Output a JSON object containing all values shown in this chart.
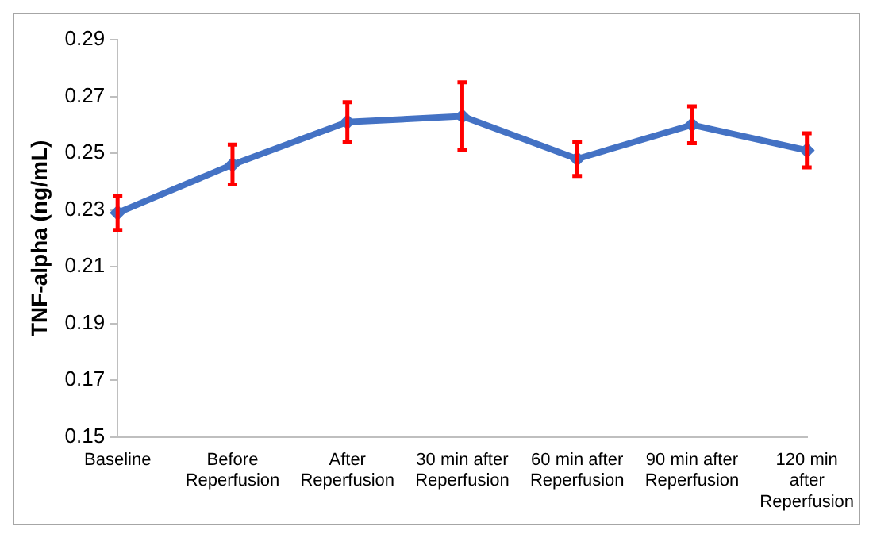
{
  "chart_data": {
    "type": "line",
    "ylabel": "TNF-alpha (ng/mL)",
    "categories": [
      "Baseline",
      "Before Reperfusion",
      "After Reperfusion",
      "30 min after Reperfusion",
      "60 min after Reperfusion",
      "90 min after Reperfusion",
      "120 min after Reperfusion"
    ],
    "series": [
      {
        "color": "#4472c4",
        "values": [
          0.229,
          0.246,
          0.261,
          0.263,
          0.248,
          0.26,
          0.251
        ],
        "errors": [
          0.006,
          0.007,
          0.007,
          0.012,
          0.006,
          0.0065,
          0.006
        ]
      }
    ],
    "ylim": [
      0.15,
      0.29
    ],
    "yticks": [
      0.15,
      0.17,
      0.19,
      0.21,
      0.23,
      0.25,
      0.27,
      0.29
    ],
    "grid": false,
    "legend": false,
    "marker": "diamond",
    "line_style": "solid"
  }
}
